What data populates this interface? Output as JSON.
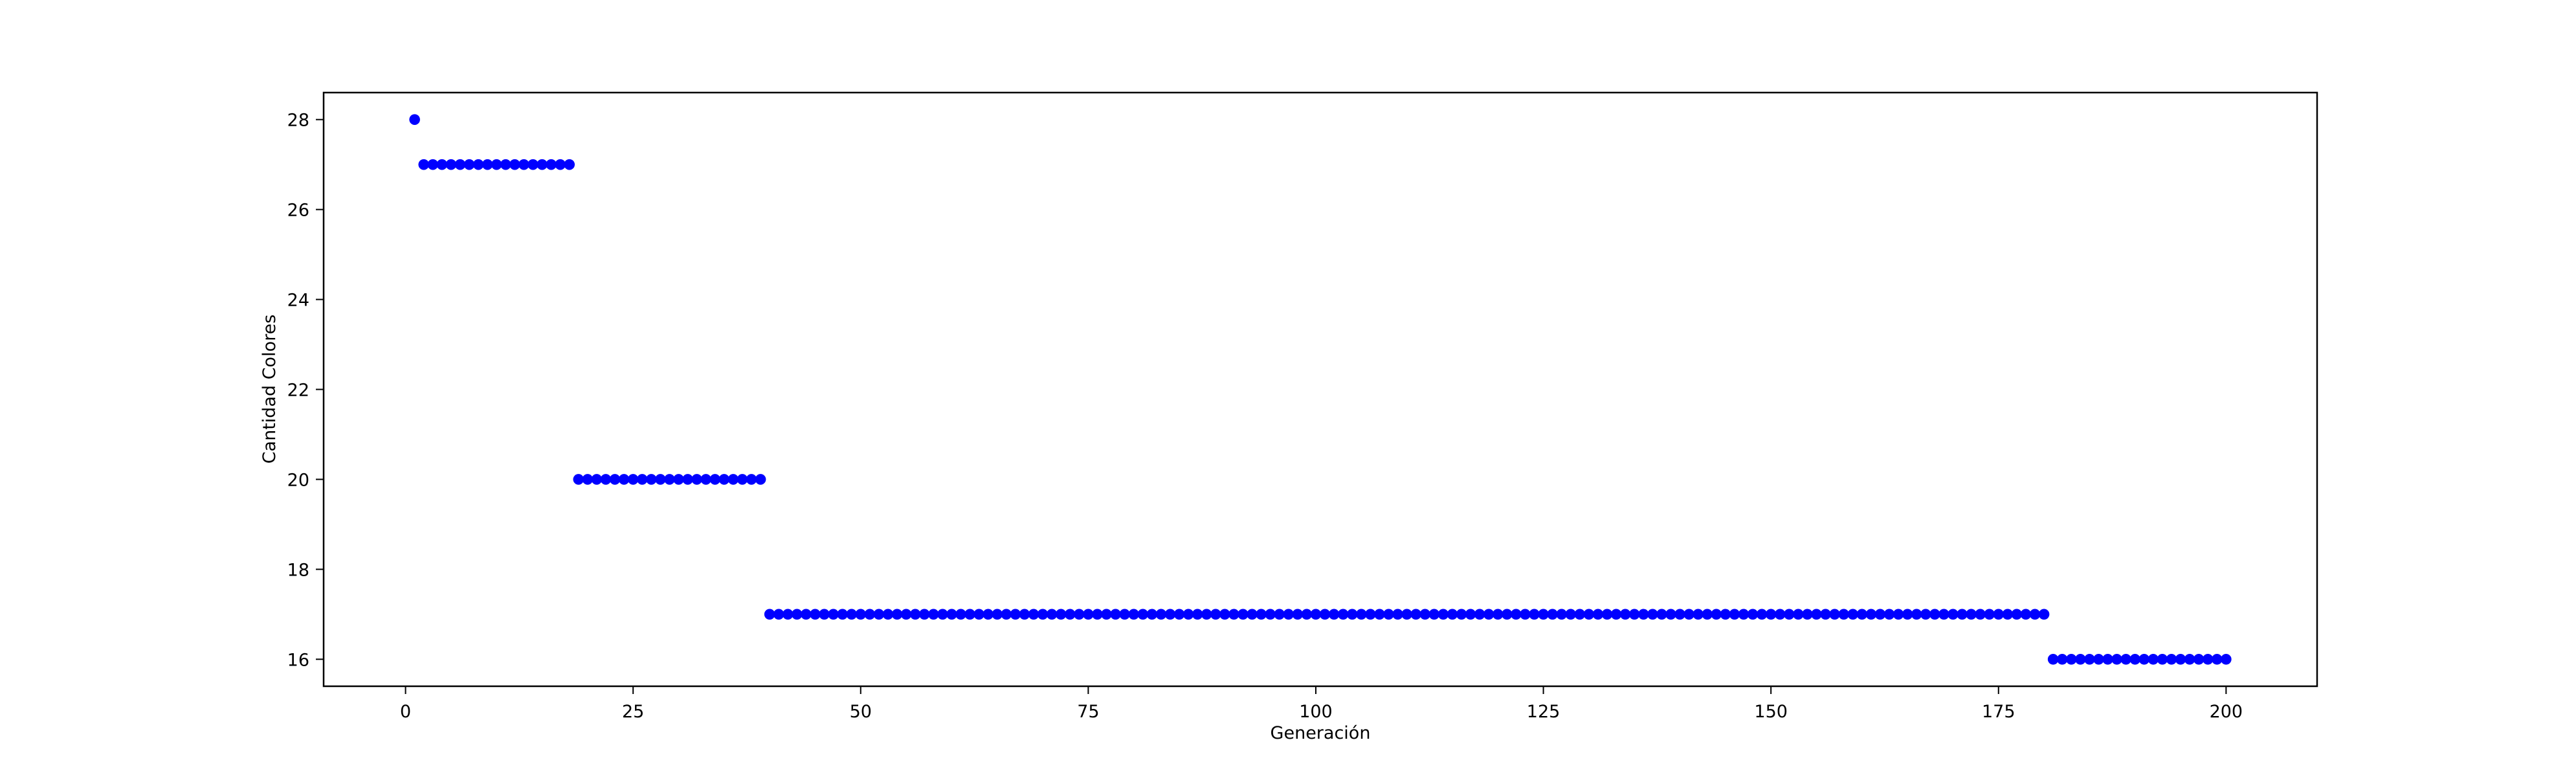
{
  "chart_data": {
    "type": "scatter",
    "title": "",
    "xlabel": "Generación",
    "ylabel": "Cantidad Colores",
    "xlim": [
      -9,
      210
    ],
    "ylim": [
      15.4,
      28.6
    ],
    "xticks": [
      "0",
      "25",
      "50",
      "75",
      "100",
      "125",
      "150",
      "175",
      "200"
    ],
    "yticks": [
      "16",
      "18",
      "20",
      "22",
      "24",
      "26",
      "28"
    ],
    "grid": false,
    "marker_color": "#0000ff",
    "segments": [
      {
        "x_from": 1,
        "x_to": 1,
        "y": 28
      },
      {
        "x_from": 2,
        "x_to": 18,
        "y": 27
      },
      {
        "x_from": 19,
        "x_to": 39,
        "y": 20
      },
      {
        "x_from": 40,
        "x_to": 180,
        "y": 17
      },
      {
        "x_from": 181,
        "x_to": 200,
        "y": 16
      }
    ]
  }
}
